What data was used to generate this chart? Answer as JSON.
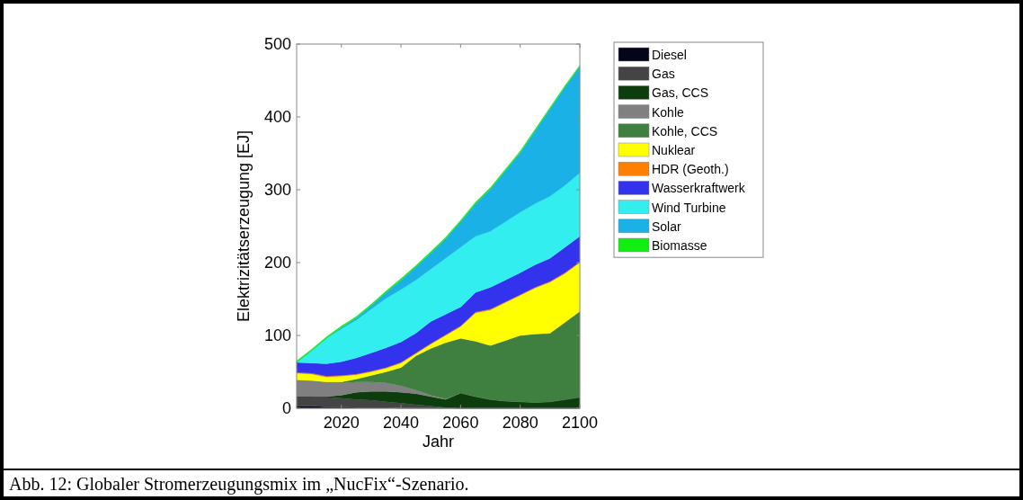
{
  "chart_data": {
    "type": "area",
    "stacked": true,
    "ylabel": "Elektrizitätserzeugung [EJ]",
    "xlabel": "Jahr",
    "annotations": [
      "Abb. 12: Globaler Stromerzeugungsmix im „NucFix“-Szenario."
    ],
    "x": [
      2005,
      2010,
      2015,
      2020,
      2025,
      2030,
      2035,
      2040,
      2045,
      2050,
      2055,
      2060,
      2065,
      2070,
      2075,
      2080,
      2085,
      2090,
      2095,
      2100
    ],
    "xlim": [
      2005,
      2100
    ],
    "xticks": [
      2020,
      2040,
      2060,
      2080,
      2100
    ],
    "ylim": [
      0,
      500
    ],
    "yticks": [
      0,
      100,
      200,
      300,
      400,
      500
    ],
    "grid": false,
    "legend": "right",
    "series": [
      {
        "name": "Diesel",
        "color": "#05051a",
        "values": [
          3,
          3,
          2,
          2,
          1,
          1,
          1,
          0,
          0,
          0,
          0,
          0,
          0,
          0,
          0,
          0,
          0,
          0,
          0,
          0
        ]
      },
      {
        "name": "Gas",
        "color": "#444444",
        "values": [
          13,
          13,
          13,
          12,
          11,
          10,
          8,
          7,
          5,
          3,
          1,
          0,
          0,
          0,
          0,
          0,
          0,
          0,
          0,
          0
        ]
      },
      {
        "name": "Gas, CCS",
        "color": "#0d3d0d",
        "values": [
          0,
          0,
          1,
          4,
          10,
          12,
          14,
          15,
          15,
          13,
          11,
          21,
          16,
          12,
          10,
          9,
          8,
          9,
          12,
          15
        ]
      },
      {
        "name": "Kohle",
        "color": "#808080",
        "values": [
          23,
          22,
          20,
          17,
          14,
          13,
          12,
          9,
          5,
          2,
          1,
          0,
          0,
          0,
          0,
          0,
          0,
          0,
          0,
          0
        ]
      },
      {
        "name": "Kohle, CCS",
        "color": "#3f7f3f",
        "values": [
          0,
          0,
          0,
          1,
          4,
          9,
          15,
          25,
          47,
          64,
          77,
          75,
          76,
          74,
          83,
          91,
          94,
          94,
          106,
          118
        ]
      },
      {
        "name": "Nuklear",
        "color": "#ffff00",
        "values": [
          9,
          9,
          7,
          8,
          6,
          5,
          5,
          6,
          3,
          6,
          10,
          16,
          39,
          49,
          52,
          55,
          63,
          70,
          67,
          67
        ]
      },
      {
        "name": "HDR (Geoth.)",
        "color": "#ff7f00",
        "values": [
          1,
          1,
          1,
          1,
          1,
          1,
          1,
          1,
          1,
          1,
          1,
          1,
          1,
          1,
          1,
          1,
          1,
          1,
          1,
          1
        ]
      },
      {
        "name": "Wasserkraftwerk",
        "color": "#3333ee",
        "values": [
          14,
          14,
          17,
          19,
          22,
          25,
          27,
          28,
          27,
          30,
          28,
          26,
          27,
          30,
          30,
          30,
          31,
          32,
          35,
          35
        ]
      },
      {
        "name": "Wind Turbine",
        "color": "#33eeee",
        "values": [
          0,
          17,
          35,
          45,
          52,
          60,
          68,
          72,
          73,
          72,
          77,
          82,
          77,
          77,
          80,
          83,
          84,
          85,
          85,
          87
        ]
      },
      {
        "name": "Solar",
        "color": "#1ab2e6",
        "values": [
          0,
          0,
          0,
          2,
          3,
          5,
          8,
          13,
          18,
          22,
          27,
          35,
          45,
          58,
          70,
          82,
          100,
          120,
          135,
          146
        ]
      },
      {
        "name": "Biomasse",
        "color": "#11ee11",
        "values": [
          2,
          2,
          2,
          2,
          2,
          2,
          2,
          2,
          2,
          2,
          2,
          2,
          2,
          2,
          2,
          2,
          2,
          2,
          2,
          2
        ]
      }
    ]
  }
}
